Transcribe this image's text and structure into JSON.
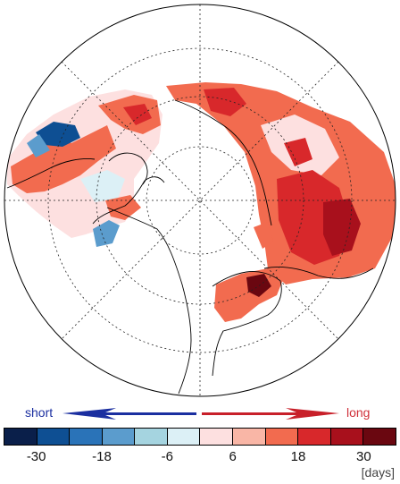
{
  "legend": {
    "short_label": "short",
    "long_label": "long",
    "unit": "[days]",
    "ticks": [
      "-30",
      "-18",
      "-6",
      "6",
      "18",
      "30"
    ],
    "colors": [
      "#0a1f4a",
      "#0e4f93",
      "#2a73b8",
      "#5b9ccd",
      "#a5d4e0",
      "#dcf0f6",
      "#fde0e0",
      "#f9b6a6",
      "#f26b4f",
      "#d8282b",
      "#a8101c",
      "#6a0710"
    ],
    "short_arrow_color": "#1b2fa0",
    "long_arrow_color": "#c8202a"
  },
  "map": {
    "projection": "north-polar-stereographic",
    "graticule": "dotted",
    "colors": {
      "strong_negative": "#0e4f93",
      "negative": "#5b9ccd",
      "weak_negative": "#dcf0f6",
      "weak_positive": "#fde0e0",
      "positive": "#f26b4f",
      "strong_positive": "#d8282b",
      "very_strong_positive": "#a8101c",
      "extreme_positive": "#6a0710"
    }
  }
}
